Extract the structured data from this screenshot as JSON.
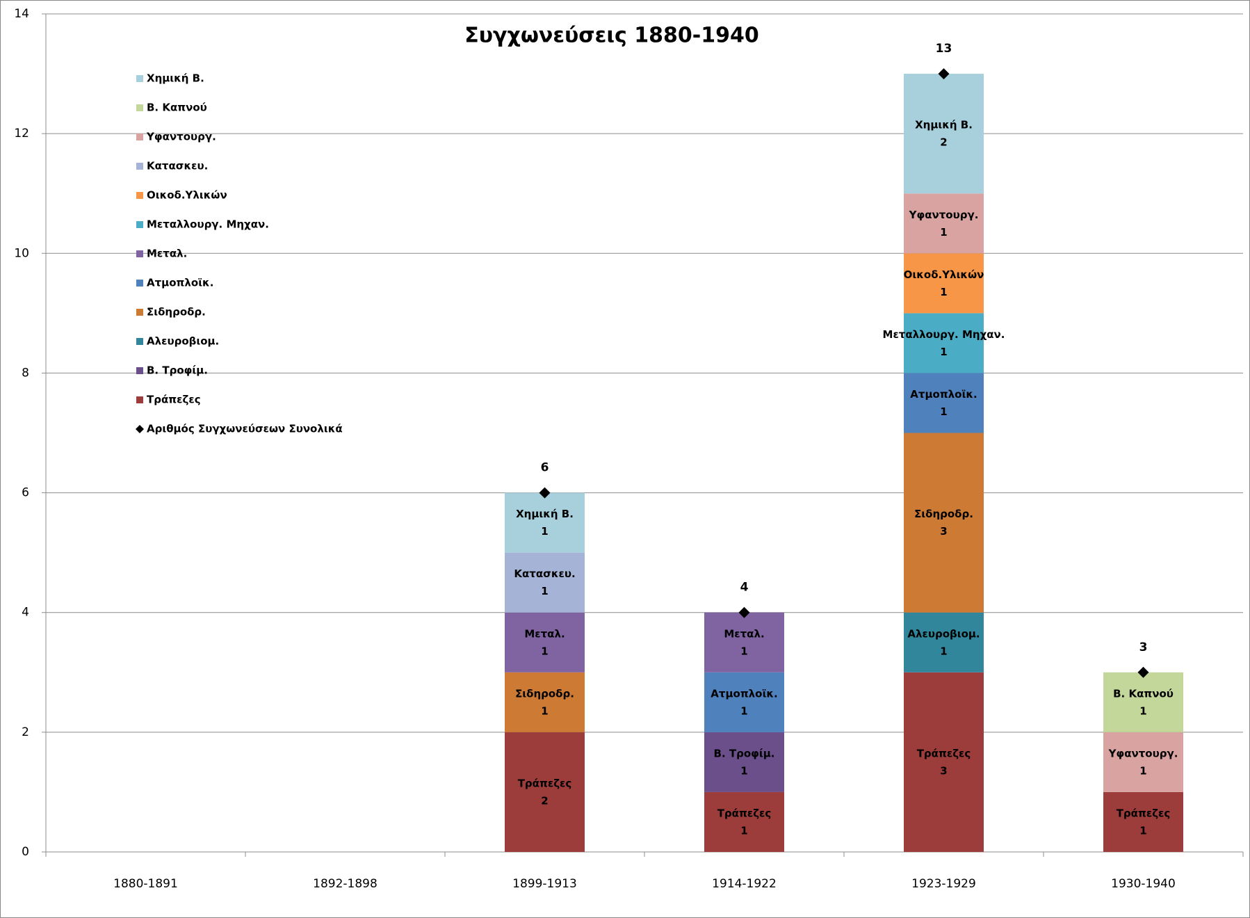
{
  "chart_data": {
    "type": "stacked-bar",
    "title": "Συγχωνεύσεις 1880-1940",
    "categories": [
      "1880-1891",
      "1892-1898",
      "1899-1913",
      "1914-1922",
      "1923-1929",
      "1930-1940"
    ],
    "ylim": [
      0,
      14
    ],
    "yticks": [
      0,
      2,
      4,
      6,
      8,
      10,
      12,
      14
    ],
    "grid": true,
    "series": [
      {
        "name": "Τράπεζες",
        "color": "#9c3d3b",
        "values": [
          null,
          null,
          2,
          1,
          3,
          1
        ]
      },
      {
        "name": "Β. Τροφίμ.",
        "color": "#6a4f8a",
        "values": [
          null,
          null,
          null,
          1,
          null,
          null
        ]
      },
      {
        "name": "Αλευροβιομ.",
        "color": "#31869b",
        "values": [
          null,
          null,
          null,
          null,
          1,
          null
        ]
      },
      {
        "name": "Σιδηροδρ.",
        "color": "#cd7a35",
        "values": [
          null,
          null,
          1,
          null,
          3,
          null
        ]
      },
      {
        "name": "Ατμοπλοϊκ.",
        "color": "#4f81bd",
        "values": [
          null,
          null,
          null,
          1,
          1,
          null
        ]
      },
      {
        "name": "Μεταλ.",
        "color": "#8064a2",
        "values": [
          null,
          null,
          1,
          1,
          null,
          null
        ]
      },
      {
        "name": "Μεταλλουργ. Μηχαν.",
        "color": "#4bacc6",
        "values": [
          null,
          null,
          null,
          null,
          1,
          null
        ]
      },
      {
        "name": "Οικοδ.Υλικών",
        "color": "#f79646",
        "values": [
          null,
          null,
          null,
          null,
          1,
          null
        ]
      },
      {
        "name": "Κατασκευ.",
        "color": "#a5b4d6",
        "values": [
          null,
          null,
          1,
          null,
          null,
          null
        ]
      },
      {
        "name": "Υφαντουργ.",
        "color": "#d9a3a2",
        "values": [
          null,
          null,
          null,
          null,
          1,
          1
        ]
      },
      {
        "name": "Β. Καπνού",
        "color": "#c4d79b",
        "values": [
          null,
          null,
          null,
          null,
          null,
          1
        ]
      },
      {
        "name": "Χημική Β.",
        "color": "#a8cfdc",
        "values": [
          null,
          null,
          1,
          null,
          2,
          null
        ]
      }
    ],
    "total": {
      "name": "Αριθμός Συγχωνεύσεων Συνολικά",
      "color": "#000000",
      "values": [
        null,
        null,
        6,
        4,
        13,
        3
      ]
    }
  }
}
